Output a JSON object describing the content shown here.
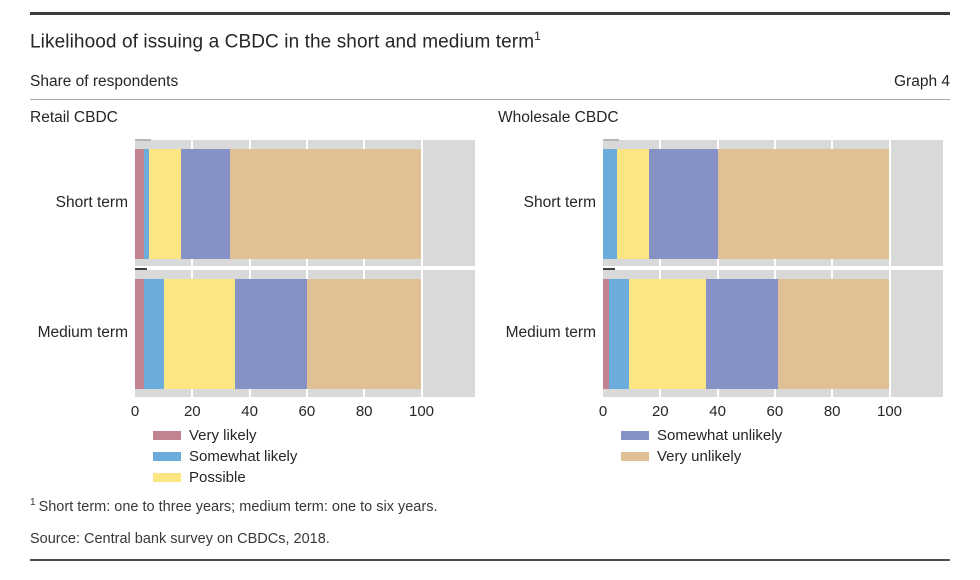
{
  "header": {
    "title": "Likelihood of issuing a CBDC in the short and medium term",
    "title_footnote_marker": "1",
    "subtitle": "Share of respondents",
    "graph_label": "Graph 4"
  },
  "colors": {
    "very_likely": "#c28391",
    "somewhat_likely": "#6cacdc",
    "possible": "#fbe683",
    "somewhat_unlikely": "#8691c6",
    "very_unlikely": "#e0c095",
    "plot_background": "#d9d9d9",
    "gridline": "#ffffff",
    "category_tick_dash": "#404040",
    "top_tick_dash": "#b5b5b5"
  },
  "chart_data": [
    {
      "type": "bar",
      "orientation": "horizontal",
      "stacked": true,
      "title": "Retail CBDC",
      "categories": [
        "Short term",
        "Medium term"
      ],
      "series": [
        {
          "name": "Very likely",
          "color_key": "very_likely",
          "values": [
            3,
            3
          ]
        },
        {
          "name": "Somewhat likely",
          "color_key": "somewhat_likely",
          "values": [
            2,
            7
          ]
        },
        {
          "name": "Possible",
          "color_key": "possible",
          "values": [
            11,
            25
          ]
        },
        {
          "name": "Somewhat unlikely",
          "color_key": "somewhat_unlikely",
          "values": [
            17,
            25
          ]
        },
        {
          "name": "Very unlikely",
          "color_key": "very_unlikely",
          "values": [
            67,
            40
          ]
        }
      ],
      "x_ticks": [
        0,
        20,
        40,
        60,
        80,
        100
      ],
      "xlim": [
        0,
        118
      ],
      "grid": true,
      "unit": "per cent of respondents",
      "legend": [
        {
          "label": "Very likely",
          "color_key": "very_likely"
        },
        {
          "label": "Somewhat likely",
          "color_key": "somewhat_likely"
        },
        {
          "label": "Possible",
          "color_key": "possible"
        }
      ]
    },
    {
      "type": "bar",
      "orientation": "horizontal",
      "stacked": true,
      "title": "Wholesale CBDC",
      "categories": [
        "Short term",
        "Medium term"
      ],
      "series": [
        {
          "name": "Very likely",
          "color_key": "very_likely",
          "values": [
            0,
            2
          ]
        },
        {
          "name": "Somewhat likely",
          "color_key": "somewhat_likely",
          "values": [
            5,
            7
          ]
        },
        {
          "name": "Possible",
          "color_key": "possible",
          "values": [
            11,
            27
          ]
        },
        {
          "name": "Somewhat unlikely",
          "color_key": "somewhat_unlikely",
          "values": [
            24,
            25
          ]
        },
        {
          "name": "Very unlikely",
          "color_key": "very_unlikely",
          "values": [
            60,
            39
          ]
        }
      ],
      "x_ticks": [
        0,
        20,
        40,
        60,
        80,
        100
      ],
      "xlim": [
        0,
        118
      ],
      "grid": true,
      "unit": "per cent of respondents",
      "legend": [
        {
          "label": "Somewhat unlikely",
          "color_key": "somewhat_unlikely"
        },
        {
          "label": "Very unlikely",
          "color_key": "very_unlikely"
        }
      ]
    }
  ],
  "footnote": {
    "marker": "1",
    "text": "Short term: one to three years; medium term: one to six years."
  },
  "source": "Source: Central bank survey on CBDCs, 2018."
}
